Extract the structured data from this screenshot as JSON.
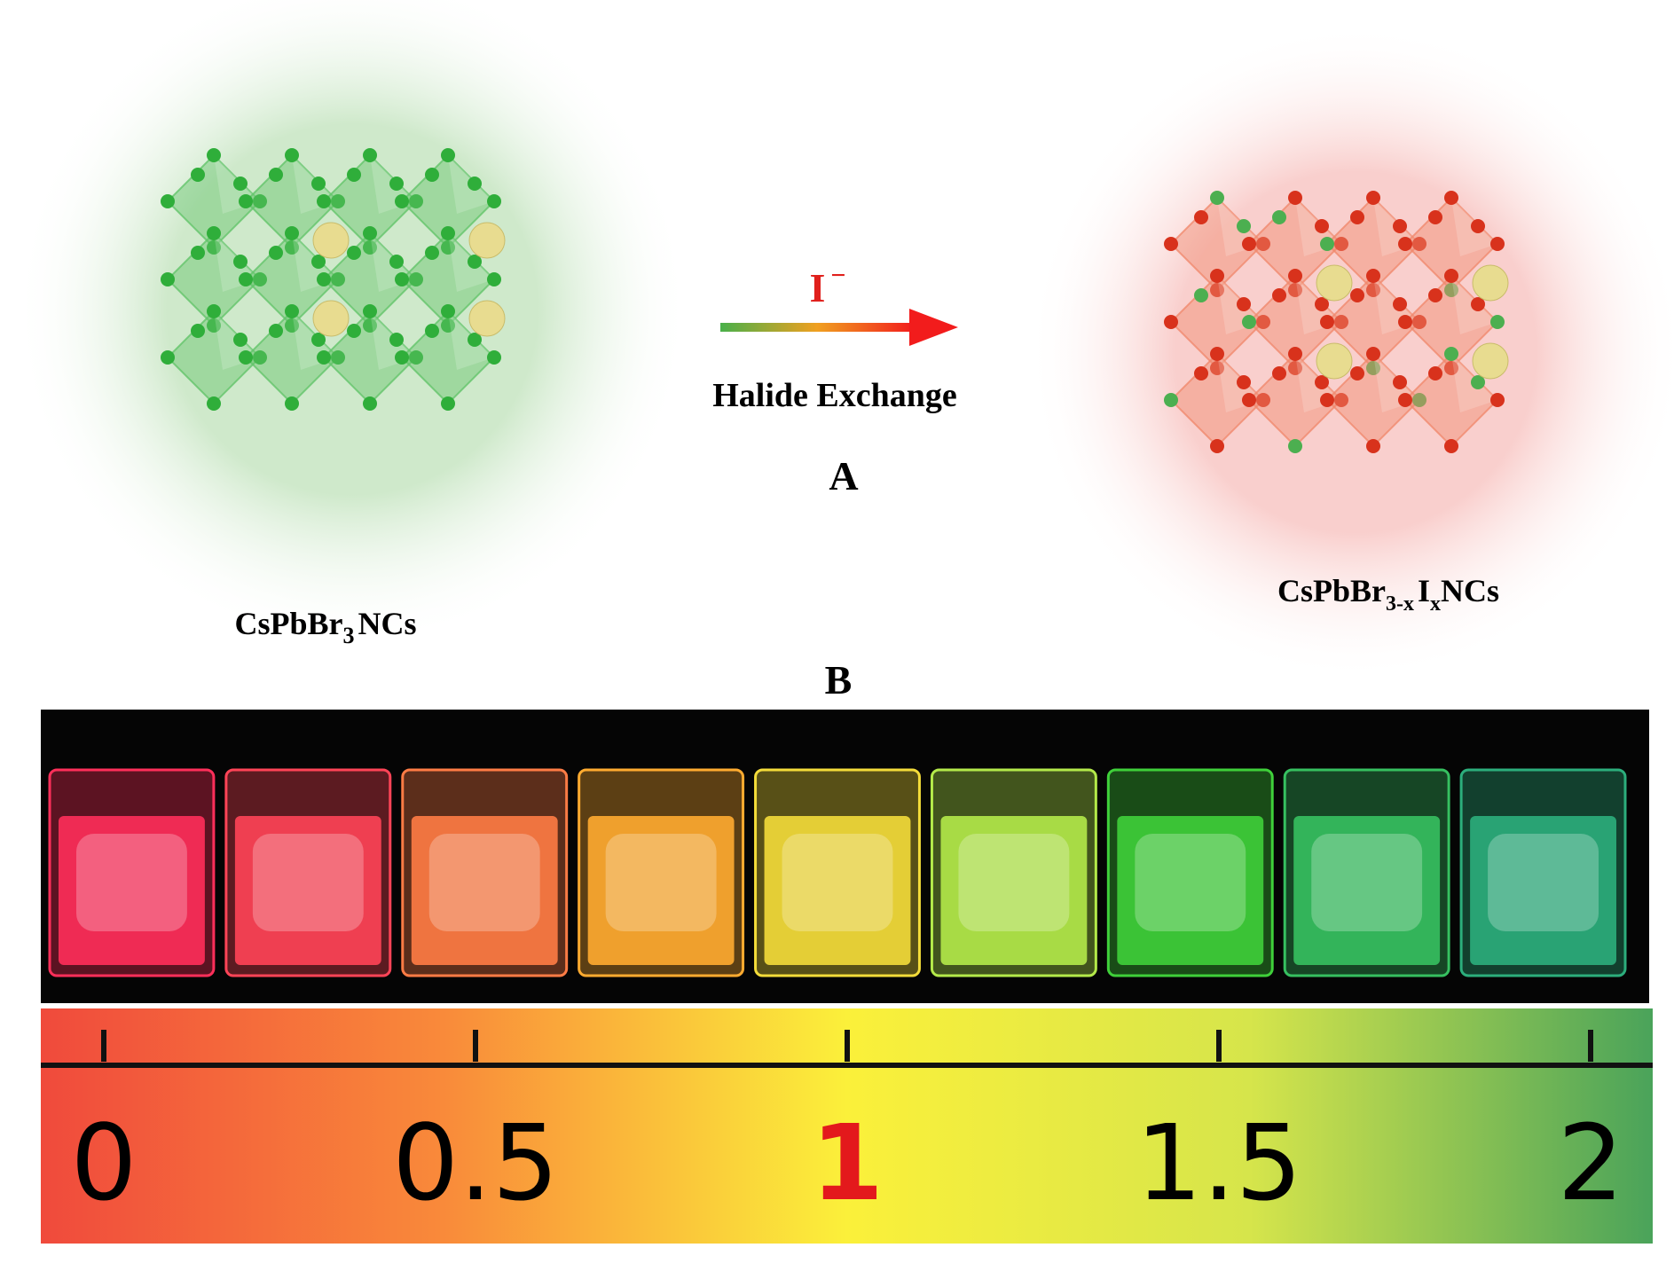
{
  "panel_a": {
    "label": "A",
    "arrow_ion": {
      "symbol": "I",
      "charge": "−"
    },
    "arrow_caption": "Halide Exchange",
    "left_label": {
      "parts": [
        "CsPbBr",
        "3",
        "NCs"
      ]
    },
    "right_label": {
      "parts": [
        "CsPbBr",
        "3-x",
        "I",
        "x",
        "NCs"
      ]
    },
    "left_color": "#63c46a",
    "right_color": "#f08a6e",
    "ion_color": "#e0201c"
  },
  "panel_b": {
    "label": "B",
    "vial_colors": [
      "#ff2f5a",
      "#ff4457",
      "#ff7c45",
      "#ffab30",
      "#f4dc3a",
      "#b4ea4a",
      "#3fd03a",
      "#36c060",
      "#2cae7c"
    ],
    "scale_range": [
      0,
      2
    ],
    "ticks": [
      0,
      0.5,
      1,
      1.5,
      2
    ],
    "tick_label_colors": [
      "#000000",
      "#000000",
      "#e3191c",
      "#000000",
      "#000000"
    ],
    "gradient_colors": [
      "#f04a3c",
      "#f98a3a",
      "#fbf03a",
      "#d6e54b",
      "#4aa35a"
    ]
  }
}
